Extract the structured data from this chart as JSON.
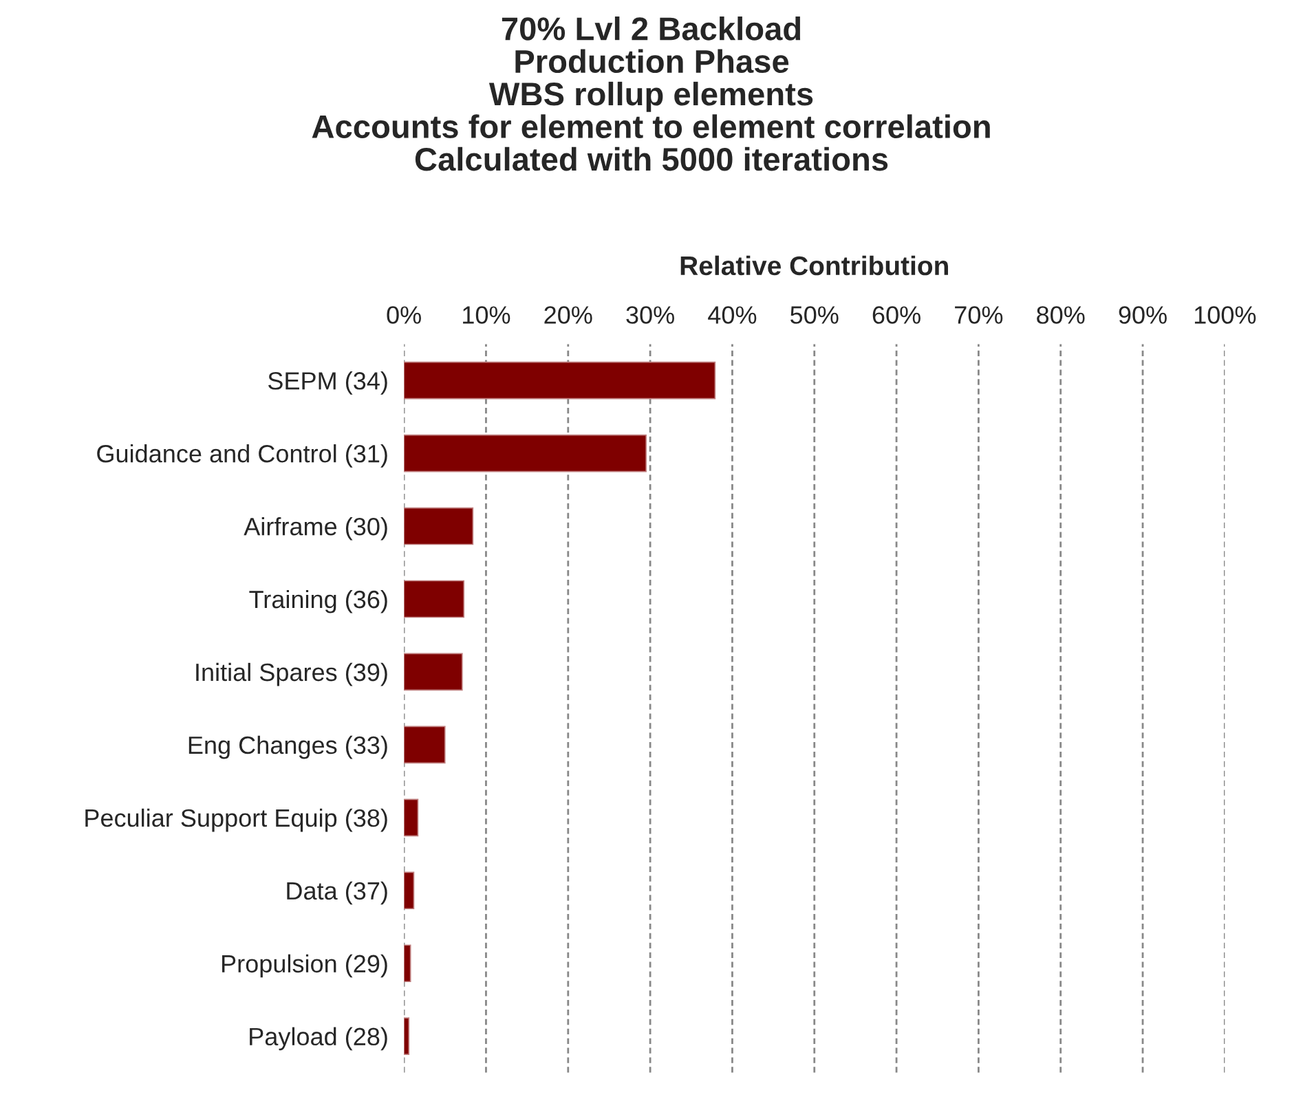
{
  "chart_data": {
    "type": "bar",
    "orientation": "horizontal",
    "title": "70% Lvl 2 Backload\nProduction Phase\nWBS rollup elements\nAccounts for element to element correlation\nCalculated with 5000 iterations",
    "xlabel": "Relative Contribution",
    "categories": [
      "SEPM (34)",
      "Guidance and Control (31)",
      "Airframe (30)",
      "Training (36)",
      "Initial Spares (39)",
      "Eng Changes (33)",
      "Peculiar Support Equip (38)",
      "Data (37)",
      "Propulsion (29)",
      "Payload (28)"
    ],
    "values": [
      37.9,
      29.5,
      8.4,
      7.3,
      7.1,
      5.0,
      1.7,
      1.2,
      0.8,
      0.6
    ],
    "color": "#7f0000",
    "xlim": [
      0,
      100
    ],
    "xticks": [
      {
        "value": 0,
        "label": "0%"
      },
      {
        "value": 10,
        "label": "10%"
      },
      {
        "value": 20,
        "label": "20%"
      },
      {
        "value": 30,
        "label": "30%"
      },
      {
        "value": 40,
        "label": "40%"
      },
      {
        "value": 50,
        "label": "50%"
      },
      {
        "value": 60,
        "label": "60%"
      },
      {
        "value": 70,
        "label": "70%"
      },
      {
        "value": 80,
        "label": "80%"
      },
      {
        "value": 90,
        "label": "90%"
      },
      {
        "value": 100,
        "label": "100%"
      }
    ],
    "grid": "x"
  }
}
